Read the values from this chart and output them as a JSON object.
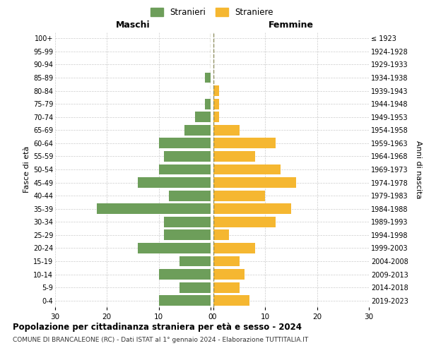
{
  "age_groups": [
    "0-4",
    "5-9",
    "10-14",
    "15-19",
    "20-24",
    "25-29",
    "30-34",
    "35-39",
    "40-44",
    "45-49",
    "50-54",
    "55-59",
    "60-64",
    "65-69",
    "70-74",
    "75-79",
    "80-84",
    "85-89",
    "90-94",
    "95-99",
    "100+"
  ],
  "birth_years": [
    "2019-2023",
    "2014-2018",
    "2009-2013",
    "2004-2008",
    "1999-2003",
    "1994-1998",
    "1989-1993",
    "1984-1988",
    "1979-1983",
    "1974-1978",
    "1969-1973",
    "1964-1968",
    "1959-1963",
    "1954-1958",
    "1949-1953",
    "1944-1948",
    "1939-1943",
    "1934-1938",
    "1929-1933",
    "1924-1928",
    "≤ 1923"
  ],
  "maschi": [
    10,
    6,
    10,
    6,
    14,
    9,
    9,
    22,
    8,
    14,
    10,
    9,
    10,
    5,
    3,
    1,
    0,
    1,
    0,
    0,
    0
  ],
  "femmine": [
    7,
    5,
    6,
    5,
    8,
    3,
    12,
    15,
    10,
    16,
    13,
    8,
    12,
    5,
    1,
    1,
    1,
    0,
    0,
    0,
    0
  ],
  "color_maschi": "#6d9e5a",
  "color_femmine": "#f5b731",
  "bg_color": "#ffffff",
  "grid_color": "#cccccc",
  "title": "Popolazione per cittadinanza straniera per età e sesso - 2024",
  "subtitle": "COMUNE DI BRANCALEONE (RC) - Dati ISTAT al 1° gennaio 2024 - Elaborazione TUTTITALIA.IT",
  "label_maschi": "Maschi",
  "label_femmine": "Femmine",
  "ylabel_left": "Fasce di età",
  "ylabel_right": "Anni di nascita",
  "legend_maschi": "Stranieri",
  "legend_femmine": "Straniere",
  "xlim": 30,
  "center_line_color": "#888855"
}
